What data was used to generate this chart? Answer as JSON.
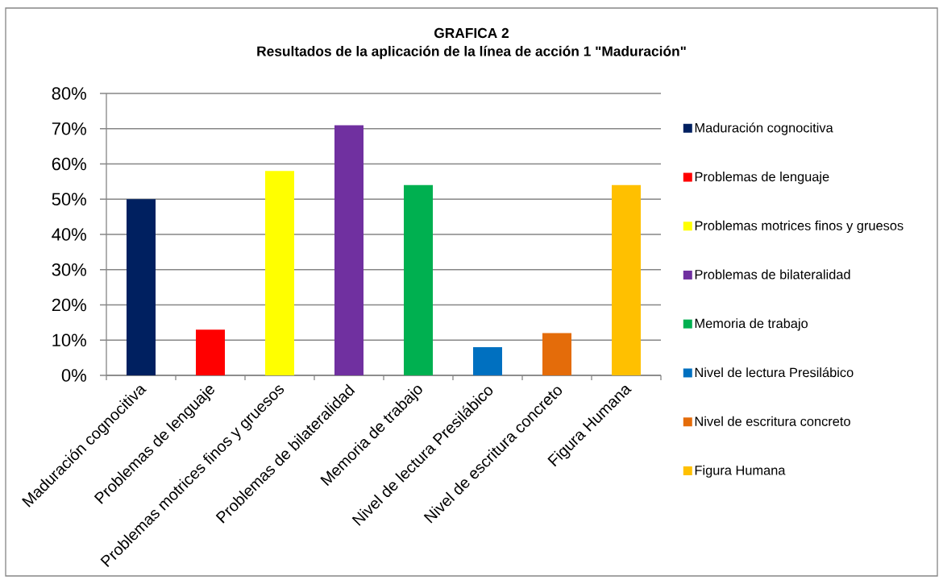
{
  "chart_data": {
    "type": "bar",
    "title": "GRAFICA 2",
    "subtitle": "Resultados de la aplicación de la línea de acción 1 \"Maduración\"",
    "categories": [
      "Maduración cognocitiva",
      "Problemas de lenguaje",
      "Problemas motrices finos y gruesos",
      "Problemas de bilateralidad",
      "Memoria de trabajo",
      "Nivel de lectura Presilábico",
      "Nivel de escritura concreto",
      "Figura Humana"
    ],
    "series": [
      {
        "name": "Maduración cognocitiva",
        "color": "#002060",
        "values": [
          50,
          null,
          null,
          null,
          null,
          null,
          null,
          null
        ]
      },
      {
        "name": "Problemas de lenguaje",
        "color": "#FF0000",
        "values": [
          null,
          13,
          null,
          null,
          null,
          null,
          null,
          null
        ]
      },
      {
        "name": "Problemas motrices finos y gruesos",
        "color": "#FFFF00",
        "values": [
          null,
          null,
          58,
          null,
          null,
          null,
          null,
          null
        ]
      },
      {
        "name": "Problemas de bilateralidad",
        "color": "#7030A0",
        "values": [
          null,
          null,
          null,
          71,
          null,
          null,
          null,
          null
        ]
      },
      {
        "name": "Memoria de trabajo",
        "color": "#00B050",
        "values": [
          null,
          null,
          null,
          null,
          54,
          null,
          null,
          null
        ]
      },
      {
        "name": "Nivel de lectura Presilábico",
        "color": "#0070C0",
        "values": [
          null,
          null,
          null,
          null,
          null,
          8,
          null,
          null
        ]
      },
      {
        "name": "Nivel de escritura concreto",
        "color": "#E46C0A",
        "values": [
          null,
          null,
          null,
          null,
          null,
          null,
          12,
          null
        ]
      },
      {
        "name": "Figura Humana",
        "color": "#FFC000",
        "values": [
          null,
          null,
          null,
          null,
          null,
          null,
          null,
          54
        ]
      }
    ],
    "ylim": [
      0,
      80
    ],
    "yticks": [
      {
        "value": 0,
        "label": "0%"
      },
      {
        "value": 10,
        "label": "10%"
      },
      {
        "value": 20,
        "label": "20%"
      },
      {
        "value": 30,
        "label": "30%"
      },
      {
        "value": 40,
        "label": "40%"
      },
      {
        "value": 50,
        "label": "50%"
      },
      {
        "value": 60,
        "label": "60%"
      },
      {
        "value": 70,
        "label": "70%"
      },
      {
        "value": 80,
        "label": "80%"
      }
    ],
    "grid": "y",
    "legend": "right"
  }
}
